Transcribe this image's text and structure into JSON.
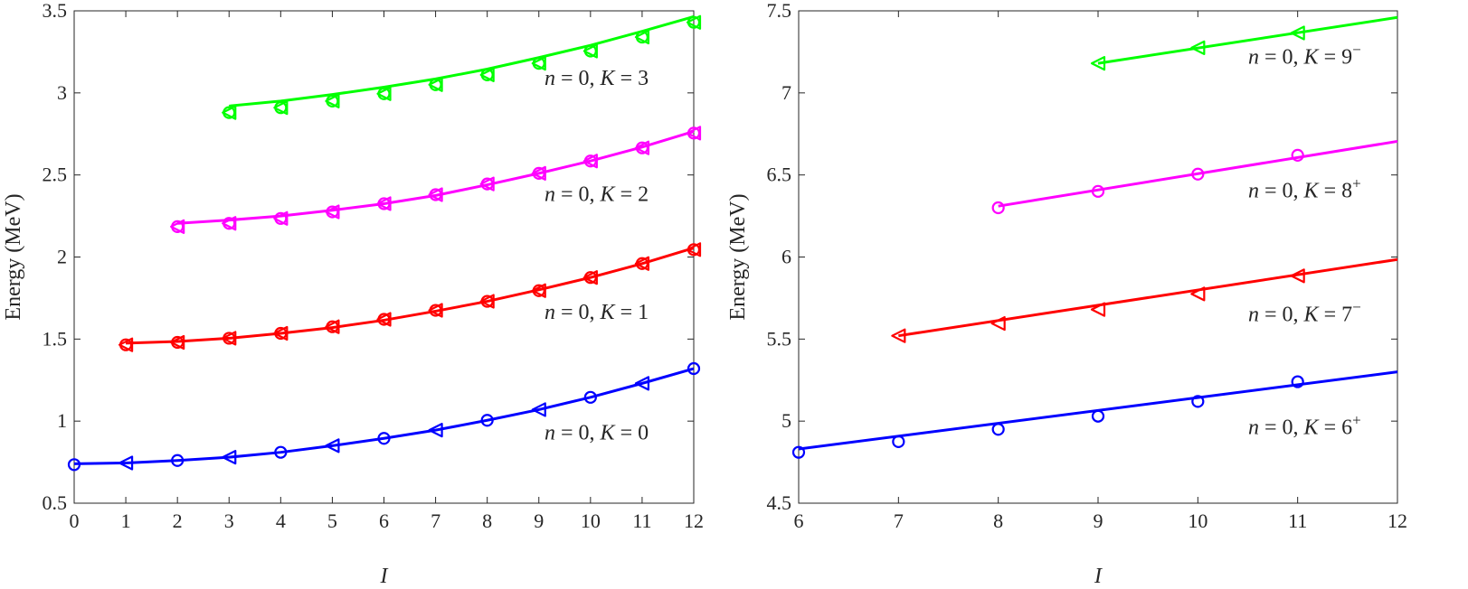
{
  "chart_data": [
    {
      "type": "line",
      "xlabel": "I",
      "ylabel": "Energy (MeV)",
      "xlim": [
        0,
        12
      ],
      "ylim": [
        0.5,
        3.5
      ],
      "xticks": [
        "0",
        "1",
        "2",
        "3",
        "4",
        "5",
        "6",
        "7",
        "8",
        "9",
        "10",
        "11",
        "12"
      ],
      "yticks": [
        "0.5",
        "1",
        "1.5",
        "2",
        "2.5",
        "3",
        "3.5"
      ],
      "series": [
        {
          "name": "n = 0, K = 0",
          "label": {
            "n": "n",
            "k": "K",
            "eq": "=",
            "n_val": "0",
            "k_val": "0",
            "sup": ""
          },
          "color": "#0000ff",
          "theory": {
            "x": [
              0,
              1,
              2,
              3,
              4,
              5,
              6,
              7,
              8,
              9,
              10,
              11,
              12
            ],
            "y": [
              0.74,
              0.745,
              0.76,
              0.78,
              0.81,
              0.85,
              0.895,
              0.945,
              1.005,
              1.07,
              1.145,
              1.23,
              1.32
            ]
          },
          "experiment": [
            {
              "x": 0,
              "y": 0.735,
              "marker": "circle"
            },
            {
              "x": 1,
              "y": 0.745,
              "marker": "triangle-left"
            },
            {
              "x": 2,
              "y": 0.76,
              "marker": "circle"
            },
            {
              "x": 3,
              "y": 0.78,
              "marker": "triangle-left"
            },
            {
              "x": 4,
              "y": 0.81,
              "marker": "circle"
            },
            {
              "x": 5,
              "y": 0.85,
              "marker": "triangle-left"
            },
            {
              "x": 6,
              "y": 0.895,
              "marker": "circle"
            },
            {
              "x": 7,
              "y": 0.945,
              "marker": "triangle-left"
            },
            {
              "x": 8,
              "y": 1.005,
              "marker": "circle"
            },
            {
              "x": 9,
              "y": 1.07,
              "marker": "triangle-left"
            },
            {
              "x": 10,
              "y": 1.145,
              "marker": "circle"
            },
            {
              "x": 11,
              "y": 1.23,
              "marker": "triangle-left"
            },
            {
              "x": 12,
              "y": 1.32,
              "marker": "circle"
            }
          ]
        },
        {
          "name": "n = 0, K = 1",
          "label": {
            "n": "n",
            "k": "K",
            "eq": "=",
            "n_val": "0",
            "k_val": "1",
            "sup": ""
          },
          "color": "#ff0000",
          "theory": {
            "x": [
              1,
              2,
              3,
              4,
              5,
              6,
              7,
              8,
              9,
              10,
              11,
              12
            ],
            "y": [
              1.475,
              1.485,
              1.505,
              1.535,
              1.57,
              1.615,
              1.67,
              1.73,
              1.8,
              1.875,
              1.96,
              2.055
            ]
          },
          "experiment": [
            {
              "x": 1,
              "y": 1.465,
              "marker": "both"
            },
            {
              "x": 2,
              "y": 1.48,
              "marker": "both"
            },
            {
              "x": 3,
              "y": 1.505,
              "marker": "both"
            },
            {
              "x": 4,
              "y": 1.535,
              "marker": "both"
            },
            {
              "x": 5,
              "y": 1.575,
              "marker": "both"
            },
            {
              "x": 6,
              "y": 1.62,
              "marker": "both"
            },
            {
              "x": 7,
              "y": 1.675,
              "marker": "both"
            },
            {
              "x": 8,
              "y": 1.73,
              "marker": "both"
            },
            {
              "x": 9,
              "y": 1.795,
              "marker": "both"
            },
            {
              "x": 10,
              "y": 1.875,
              "marker": "both"
            },
            {
              "x": 11,
              "y": 1.96,
              "marker": "both"
            },
            {
              "x": 12,
              "y": 2.045,
              "marker": "both"
            }
          ]
        },
        {
          "name": "n = 0, K = 2",
          "label": {
            "n": "n",
            "k": "K",
            "eq": "=",
            "n_val": "0",
            "k_val": "2",
            "sup": ""
          },
          "color": "#ff00ff",
          "theory": {
            "x": [
              2,
              3,
              4,
              5,
              6,
              7,
              8,
              9,
              10,
              11,
              12
            ],
            "y": [
              2.205,
              2.225,
              2.25,
              2.285,
              2.325,
              2.375,
              2.44,
              2.51,
              2.585,
              2.67,
              2.765
            ]
          },
          "experiment": [
            {
              "x": 2,
              "y": 2.185,
              "marker": "both"
            },
            {
              "x": 3,
              "y": 2.205,
              "marker": "both"
            },
            {
              "x": 4,
              "y": 2.235,
              "marker": "both"
            },
            {
              "x": 5,
              "y": 2.275,
              "marker": "both"
            },
            {
              "x": 6,
              "y": 2.325,
              "marker": "both"
            },
            {
              "x": 7,
              "y": 2.38,
              "marker": "both"
            },
            {
              "x": 8,
              "y": 2.445,
              "marker": "both"
            },
            {
              "x": 9,
              "y": 2.51,
              "marker": "both"
            },
            {
              "x": 10,
              "y": 2.585,
              "marker": "both"
            },
            {
              "x": 11,
              "y": 2.665,
              "marker": "both"
            },
            {
              "x": 12,
              "y": 2.755,
              "marker": "both"
            }
          ]
        },
        {
          "name": "n = 0, K = 3",
          "label": {
            "n": "n",
            "k": "K",
            "eq": "=",
            "n_val": "0",
            "k_val": "3",
            "sup": ""
          },
          "color": "#00ff00",
          "theory": {
            "x": [
              3,
              4,
              5,
              6,
              7,
              8,
              9,
              10,
              11,
              12
            ],
            "y": [
              2.92,
              2.95,
              2.99,
              3.035,
              3.085,
              3.145,
              3.215,
              3.29,
              3.375,
              3.465
            ]
          },
          "experiment": [
            {
              "x": 3,
              "y": 2.88,
              "marker": "both"
            },
            {
              "x": 4,
              "y": 2.91,
              "marker": "both"
            },
            {
              "x": 5,
              "y": 2.95,
              "marker": "both"
            },
            {
              "x": 6,
              "y": 2.995,
              "marker": "both"
            },
            {
              "x": 7,
              "y": 3.05,
              "marker": "both"
            },
            {
              "x": 8,
              "y": 3.11,
              "marker": "both"
            },
            {
              "x": 9,
              "y": 3.18,
              "marker": "both"
            },
            {
              "x": 10,
              "y": 3.255,
              "marker": "both"
            },
            {
              "x": 11,
              "y": 3.34,
              "marker": "both"
            },
            {
              "x": 12,
              "y": 3.43,
              "marker": "both"
            }
          ]
        }
      ]
    },
    {
      "type": "line",
      "xlabel": "I",
      "ylabel": "Energy (MeV)",
      "xlim": [
        6,
        12
      ],
      "ylim": [
        4.5,
        7.5
      ],
      "xticks": [
        "6",
        "7",
        "8",
        "9",
        "10",
        "11",
        "12"
      ],
      "yticks": [
        "4.5",
        "5",
        "5.5",
        "6",
        "6.5",
        "7",
        "7.5"
      ],
      "series": [
        {
          "name": "n = 0, K = 6+",
          "label": {
            "n": "n",
            "k": "K",
            "eq": "=",
            "n_val": "0",
            "k_val": "6",
            "sup": "+"
          },
          "color": "#0000ff",
          "theory": {
            "x": [
              6,
              12
            ],
            "y": [
              4.83,
              5.3
            ]
          },
          "experiment": [
            {
              "x": 6,
              "y": 4.81,
              "marker": "circle"
            },
            {
              "x": 7,
              "y": 4.875,
              "marker": "circle"
            },
            {
              "x": 8,
              "y": 4.95,
              "marker": "circle"
            },
            {
              "x": 9,
              "y": 5.03,
              "marker": "circle"
            },
            {
              "x": 10,
              "y": 5.12,
              "marker": "circle"
            },
            {
              "x": 11,
              "y": 5.24,
              "marker": "circle"
            }
          ]
        },
        {
          "name": "n = 0, K = 7-",
          "label": {
            "n": "n",
            "k": "K",
            "eq": "=",
            "n_val": "0",
            "k_val": "7",
            "sup": "−"
          },
          "color": "#ff0000",
          "theory": {
            "x": [
              7,
              12
            ],
            "y": [
              5.52,
              5.985
            ]
          },
          "experiment": [
            {
              "x": 7,
              "y": 5.52,
              "marker": "triangle-left"
            },
            {
              "x": 8,
              "y": 5.595,
              "marker": "triangle-left"
            },
            {
              "x": 9,
              "y": 5.68,
              "marker": "triangle-left"
            },
            {
              "x": 10,
              "y": 5.775,
              "marker": "triangle-left"
            },
            {
              "x": 11,
              "y": 5.885,
              "marker": "triangle-left"
            }
          ]
        },
        {
          "name": "n = 0, K = 8+",
          "label": {
            "n": "n",
            "k": "K",
            "eq": "=",
            "n_val": "0",
            "k_val": "8",
            "sup": "+"
          },
          "color": "#ff00ff",
          "theory": {
            "x": [
              8,
              12
            ],
            "y": [
              6.31,
              6.705
            ]
          },
          "experiment": [
            {
              "x": 8,
              "y": 6.3,
              "marker": "circle"
            },
            {
              "x": 9,
              "y": 6.4,
              "marker": "circle"
            },
            {
              "x": 10,
              "y": 6.505,
              "marker": "circle"
            },
            {
              "x": 11,
              "y": 6.62,
              "marker": "circle"
            }
          ]
        },
        {
          "name": "n = 0, K = 9-",
          "label": {
            "n": "n",
            "k": "K",
            "eq": "=",
            "n_val": "0",
            "k_val": "9",
            "sup": "−"
          },
          "color": "#00ff00",
          "theory": {
            "x": [
              9,
              12
            ],
            "y": [
              7.18,
              7.46
            ]
          },
          "experiment": [
            {
              "x": 9,
              "y": 7.18,
              "marker": "triangle-left"
            },
            {
              "x": 10,
              "y": 7.275,
              "marker": "triangle-left"
            },
            {
              "x": 11,
              "y": 7.365,
              "marker": "triangle-left"
            }
          ]
        }
      ]
    }
  ]
}
